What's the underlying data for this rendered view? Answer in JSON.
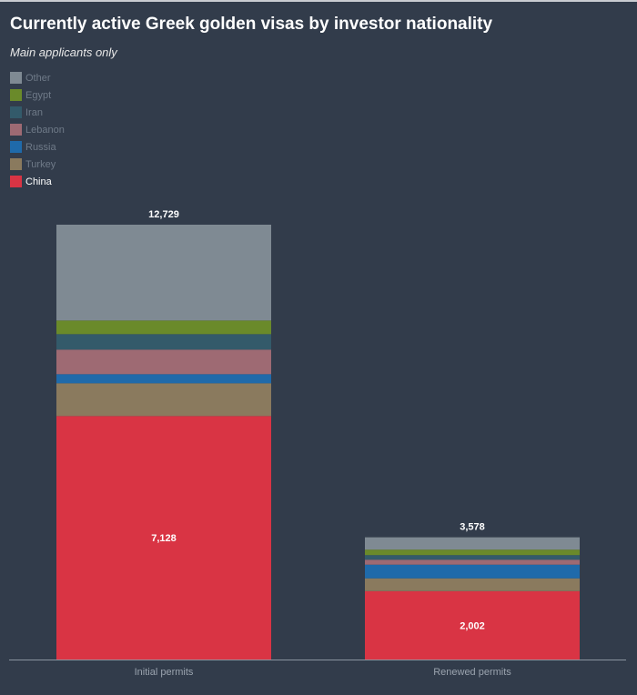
{
  "chart_data": {
    "type": "bar",
    "stacked": true,
    "title": "Currently active Greek golden visas by investor nationality",
    "subtitle": "Main applicants only",
    "categories": [
      "Initial permits",
      "Renewed permits"
    ],
    "totals": [
      "12,729",
      "3,578"
    ],
    "series": [
      {
        "name": "China",
        "color": "#d93444",
        "values": [
          7128,
          2002
        ],
        "labels": [
          "7,128",
          "2,002"
        ]
      },
      {
        "name": "Turkey",
        "color": "#8a7a5e",
        "values": [
          959,
          375
        ]
      },
      {
        "name": "Russia",
        "color": "#1f6aaa",
        "values": [
          266,
          400
        ]
      },
      {
        "name": "Lebanon",
        "color": "#9e6a73",
        "values": [
          719,
          145
        ]
      },
      {
        "name": "Iran",
        "color": "#335a6a",
        "values": [
          453,
          135
        ]
      },
      {
        "name": "Egypt",
        "color": "#6a8a2a",
        "values": [
          400,
          160
        ]
      },
      {
        "name": "Other",
        "color": "#7f8a93",
        "values": [
          2804,
          361
        ]
      }
    ],
    "legend_order": [
      "Other",
      "Egypt",
      "Iran",
      "Lebanon",
      "Russia",
      "Turkey",
      "China"
    ],
    "legend_highlighted": "China",
    "legend_placement": "top-left",
    "ylim": [
      0,
      12729
    ],
    "grid": false
  }
}
